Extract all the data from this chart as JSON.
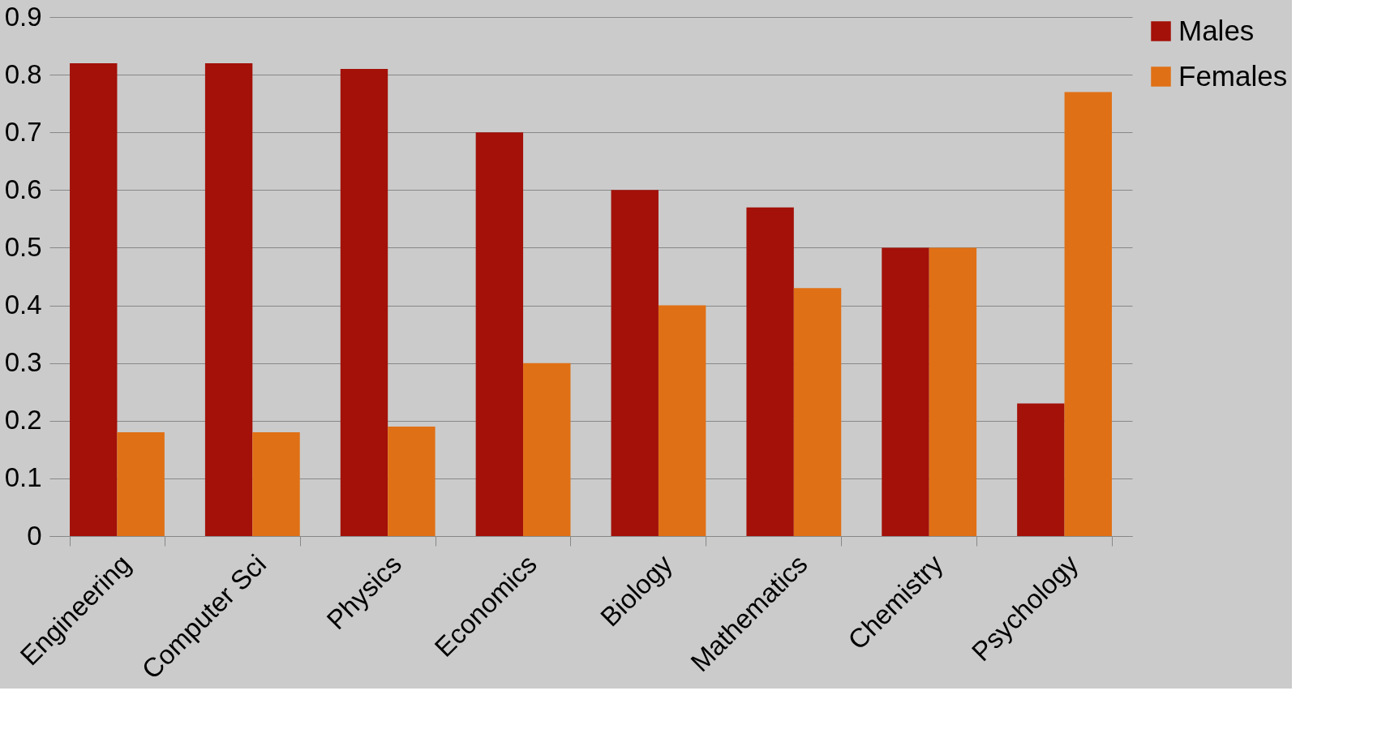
{
  "chart_data": {
    "type": "bar",
    "categories": [
      "Engineering",
      "Computer Sci",
      "Physics",
      "Economics",
      "Biology",
      "Mathematics",
      "Chemistry",
      "Psychology"
    ],
    "series": [
      {
        "name": "Males",
        "color": "#a31109",
        "values": [
          0.82,
          0.82,
          0.81,
          0.7,
          0.6,
          0.57,
          0.5,
          0.23
        ]
      },
      {
        "name": "Females",
        "color": "#e07015",
        "values": [
          0.18,
          0.18,
          0.19,
          0.3,
          0.4,
          0.43,
          0.5,
          0.77
        ]
      }
    ],
    "ylim": [
      0,
      0.9
    ],
    "yticks": [
      0,
      0.1,
      0.2,
      0.3,
      0.4,
      0.5,
      0.6,
      0.7,
      0.8,
      0.9
    ],
    "grid": "y",
    "legend": "right"
  }
}
